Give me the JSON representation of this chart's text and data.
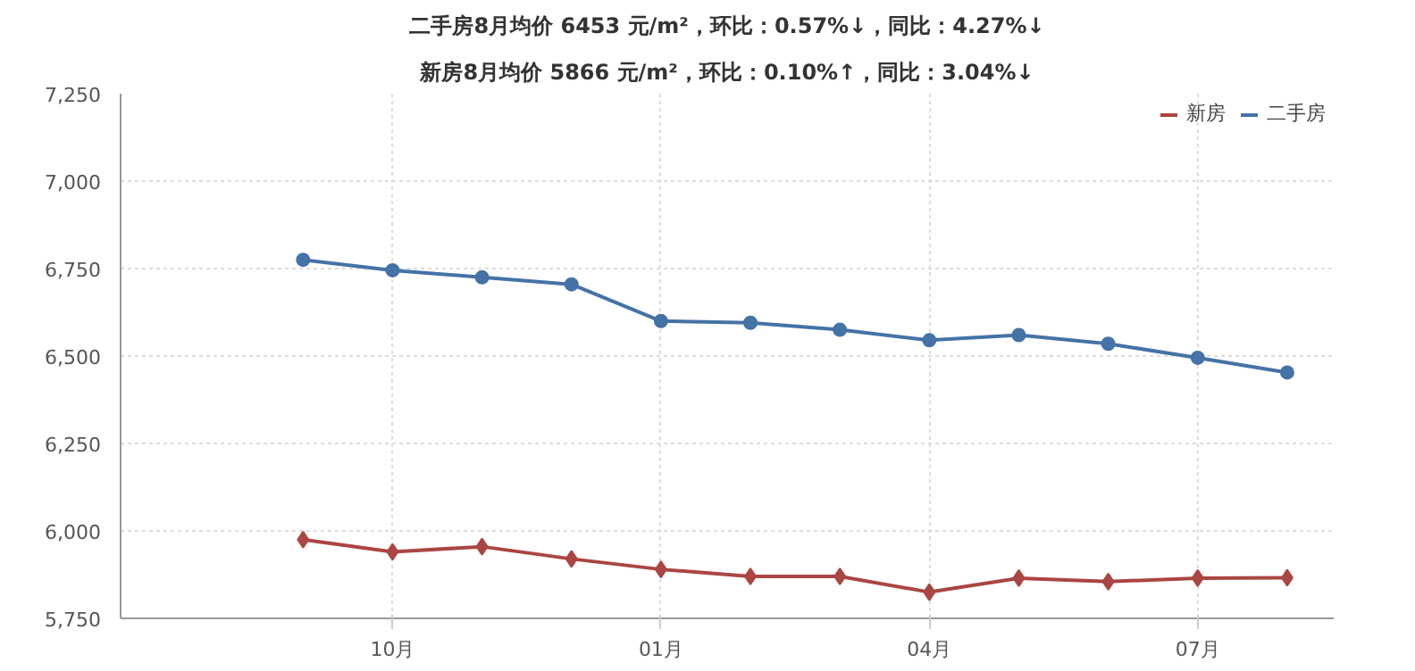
{
  "chart_data": {
    "type": "line",
    "title": "二手房8月均价 6453 元/m²，环比：0.57%↓，同比：4.27%↓",
    "subtitle": "新房8月均价 5866 元/m²，环比：0.10%↑，同比：3.04%↓",
    "categories": [
      null,
      "10月",
      null,
      null,
      "01月",
      null,
      null,
      "04月",
      null,
      null,
      "07月",
      null
    ],
    "series": [
      {
        "name": "新房",
        "color": "#aa4643",
        "marker": "diamond",
        "values": [
          5975,
          5940,
          5955,
          5920,
          5890,
          5870,
          5870,
          5825,
          5865,
          5855,
          5865,
          5866
        ]
      },
      {
        "name": "二手房",
        "color": "#4572a7",
        "marker": "circle",
        "values": [
          6775,
          6745,
          6725,
          6705,
          6600,
          6595,
          6575,
          6545,
          6560,
          6535,
          6495,
          6453
        ]
      }
    ],
    "ylim": [
      5750,
      7250
    ],
    "yticks": [
      {
        "value": 5750,
        "label": "5,750"
      },
      {
        "value": 6000,
        "label": "6,000"
      },
      {
        "value": 6250,
        "label": "6,250"
      },
      {
        "value": 6500,
        "label": "6,500"
      },
      {
        "value": 6750,
        "label": "6,750"
      },
      {
        "value": 7000,
        "label": "7,000"
      },
      {
        "value": 7250,
        "label": "7,250"
      }
    ],
    "grid": true,
    "legend": "top right",
    "line_style": "solid"
  }
}
